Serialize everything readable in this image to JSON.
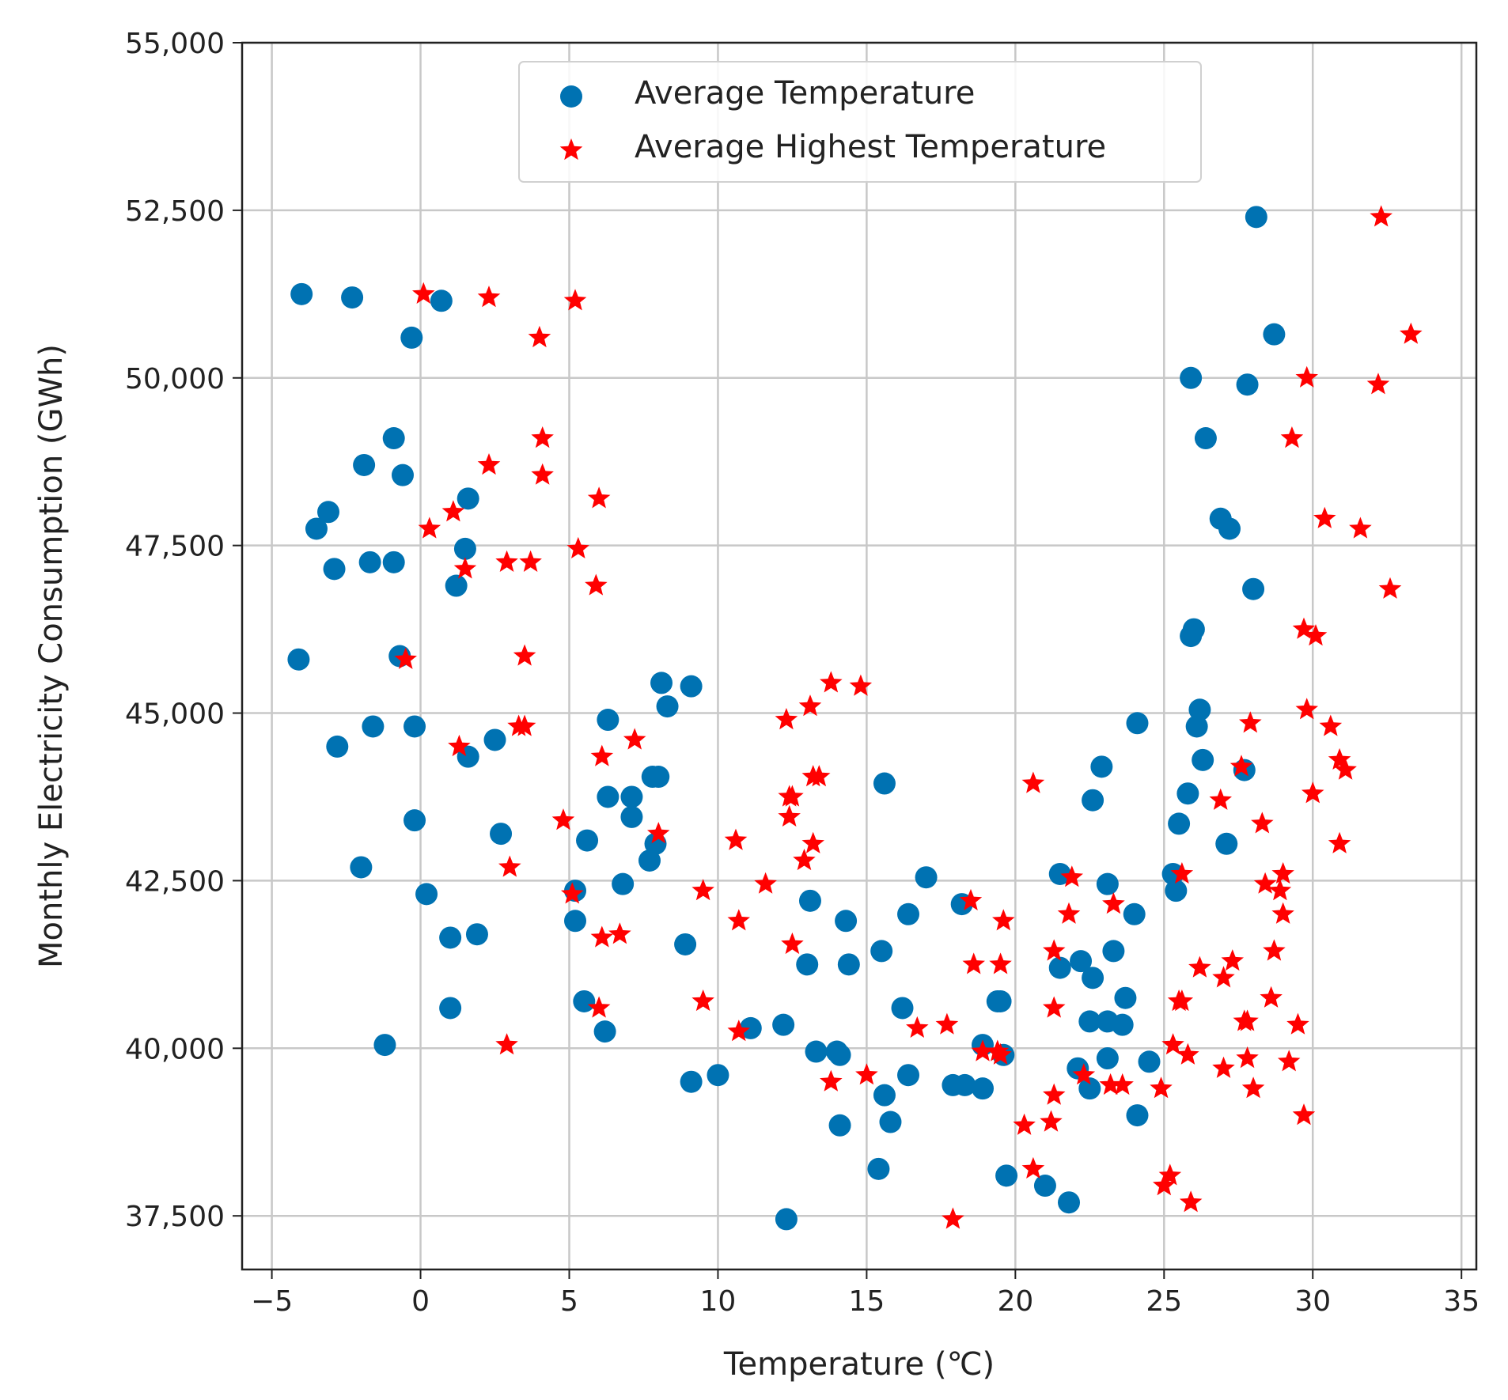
{
  "chart_data": {
    "type": "scatter",
    "title": "",
    "xlabel": "Temperature (℃)",
    "ylabel": "Monthly Electricity Consumption (GWh)",
    "xlim": [
      -6,
      35.5
    ],
    "ylim": [
      36700,
      55000
    ],
    "grid": true,
    "legend_position": "top-center",
    "xticks": [
      -5,
      0,
      5,
      10,
      15,
      20,
      25,
      30,
      35
    ],
    "xtick_labels": [
      "−5",
      "0",
      "5",
      "10",
      "15",
      "20",
      "25",
      "30",
      "35"
    ],
    "yticks": [
      37500,
      40000,
      42500,
      45000,
      47500,
      50000,
      52500,
      55000
    ],
    "ytick_labels": [
      "37,500",
      "40,000",
      "42,500",
      "45,000",
      "47,500",
      "50,000",
      "52,500",
      "55,000"
    ],
    "series": [
      {
        "name": "Average Temperature",
        "marker": "circle",
        "color": "#0072B2",
        "points": [
          [
            -4.0,
            51250
          ],
          [
            -2.3,
            51200
          ],
          [
            0.7,
            51150
          ],
          [
            -0.3,
            50600
          ],
          [
            -0.9,
            49100
          ],
          [
            -1.9,
            48700
          ],
          [
            -0.6,
            48550
          ],
          [
            1.6,
            48200
          ],
          [
            -3.1,
            48000
          ],
          [
            -3.5,
            47750
          ],
          [
            -1.7,
            47250
          ],
          [
            -0.9,
            47250
          ],
          [
            -2.9,
            47150
          ],
          [
            1.5,
            47450
          ],
          [
            1.2,
            46900
          ],
          [
            -4.1,
            45800
          ],
          [
            -0.7,
            45850
          ],
          [
            -1.6,
            44800
          ],
          [
            -0.2,
            44800
          ],
          [
            -2.8,
            44500
          ],
          [
            1.6,
            44350
          ],
          [
            2.5,
            44600
          ],
          [
            -0.2,
            43400
          ],
          [
            2.7,
            43200
          ],
          [
            -2.0,
            42700
          ],
          [
            0.2,
            42300
          ],
          [
            1.0,
            41650
          ],
          [
            1.9,
            41700
          ],
          [
            1.0,
            40600
          ],
          [
            -1.2,
            40050
          ],
          [
            5.2,
            42350
          ],
          [
            5.2,
            41900
          ],
          [
            5.6,
            43100
          ],
          [
            6.3,
            43750
          ],
          [
            6.3,
            44900
          ],
          [
            7.1,
            43750
          ],
          [
            7.1,
            43450
          ],
          [
            6.8,
            42450
          ],
          [
            7.8,
            44050
          ],
          [
            8.0,
            44050
          ],
          [
            8.1,
            45450
          ],
          [
            8.3,
            45100
          ],
          [
            7.9,
            43050
          ],
          [
            7.7,
            42800
          ],
          [
            9.1,
            45400
          ],
          [
            8.9,
            41550
          ],
          [
            5.5,
            40700
          ],
          [
            6.2,
            40250
          ],
          [
            10.0,
            39600
          ],
          [
            9.1,
            39500
          ],
          [
            11.1,
            40300
          ],
          [
            12.2,
            40350
          ],
          [
            12.3,
            37450
          ],
          [
            13.0,
            41250
          ],
          [
            13.1,
            42200
          ],
          [
            13.3,
            39950
          ],
          [
            14.1,
            39900
          ],
          [
            14.0,
            39950
          ],
          [
            14.3,
            41900
          ],
          [
            14.4,
            41250
          ],
          [
            14.1,
            38850
          ],
          [
            15.4,
            38200
          ],
          [
            15.5,
            41450
          ],
          [
            15.6,
            43950
          ],
          [
            15.6,
            39300
          ],
          [
            15.8,
            38900
          ],
          [
            16.2,
            40600
          ],
          [
            16.4,
            42000
          ],
          [
            16.4,
            39600
          ],
          [
            17.0,
            42550
          ],
          [
            18.2,
            42150
          ],
          [
            17.9,
            39450
          ],
          [
            18.3,
            39450
          ],
          [
            18.9,
            40050
          ],
          [
            18.9,
            39400
          ],
          [
            19.4,
            40700
          ],
          [
            19.5,
            40700
          ],
          [
            19.6,
            39900
          ],
          [
            19.7,
            38100
          ],
          [
            21.0,
            37950
          ],
          [
            21.8,
            37700
          ],
          [
            21.5,
            42600
          ],
          [
            21.5,
            41200
          ],
          [
            22.2,
            41300
          ],
          [
            22.6,
            41050
          ],
          [
            22.5,
            40400
          ],
          [
            22.6,
            43700
          ],
          [
            22.9,
            44200
          ],
          [
            23.1,
            42450
          ],
          [
            23.3,
            41450
          ],
          [
            23.1,
            40400
          ],
          [
            23.6,
            40350
          ],
          [
            23.7,
            40750
          ],
          [
            22.1,
            39700
          ],
          [
            22.5,
            39400
          ],
          [
            23.1,
            39850
          ],
          [
            24.0,
            42000
          ],
          [
            24.1,
            44850
          ],
          [
            24.5,
            39800
          ],
          [
            24.1,
            39000
          ],
          [
            25.3,
            42600
          ],
          [
            25.4,
            42350
          ],
          [
            25.5,
            43350
          ],
          [
            25.8,
            43800
          ],
          [
            26.0,
            46250
          ],
          [
            25.9,
            46150
          ],
          [
            26.1,
            44800
          ],
          [
            26.2,
            45050
          ],
          [
            26.3,
            44300
          ],
          [
            25.9,
            50000
          ],
          [
            26.4,
            49100
          ],
          [
            26.9,
            47900
          ],
          [
            27.2,
            47750
          ],
          [
            27.7,
            44150
          ],
          [
            27.1,
            43050
          ],
          [
            28.0,
            46850
          ],
          [
            27.8,
            49900
          ],
          [
            28.7,
            50650
          ],
          [
            28.1,
            52400
          ]
        ]
      },
      {
        "name": "Average Highest Temperature",
        "marker": "star",
        "color": "#FF0000",
        "points": [
          [
            0.1,
            51250
          ],
          [
            2.3,
            51200
          ],
          [
            5.2,
            51150
          ],
          [
            4.0,
            50600
          ],
          [
            4.1,
            49100
          ],
          [
            2.3,
            48700
          ],
          [
            4.1,
            48550
          ],
          [
            6.0,
            48200
          ],
          [
            1.1,
            48000
          ],
          [
            0.3,
            47750
          ],
          [
            2.9,
            47250
          ],
          [
            3.7,
            47250
          ],
          [
            1.5,
            47150
          ],
          [
            5.3,
            47450
          ],
          [
            5.9,
            46900
          ],
          [
            -0.5,
            45800
          ],
          [
            3.5,
            45850
          ],
          [
            3.3,
            44800
          ],
          [
            3.5,
            44800
          ],
          [
            1.3,
            44500
          ],
          [
            6.1,
            44350
          ],
          [
            7.2,
            44600
          ],
          [
            4.8,
            43400
          ],
          [
            8.0,
            43200
          ],
          [
            3.0,
            42700
          ],
          [
            5.1,
            42300
          ],
          [
            6.1,
            41650
          ],
          [
            6.7,
            41700
          ],
          [
            6.0,
            40600
          ],
          [
            2.9,
            40050
          ],
          [
            9.5,
            42350
          ],
          [
            10.7,
            41900
          ],
          [
            10.6,
            43100
          ],
          [
            12.4,
            43750
          ],
          [
            12.3,
            44900
          ],
          [
            12.5,
            43750
          ],
          [
            12.4,
            43450
          ],
          [
            11.6,
            42450
          ],
          [
            13.2,
            44050
          ],
          [
            13.4,
            44050
          ],
          [
            13.8,
            45450
          ],
          [
            13.1,
            45100
          ],
          [
            13.2,
            43050
          ],
          [
            12.9,
            42800
          ],
          [
            14.8,
            45400
          ],
          [
            12.5,
            41550
          ],
          [
            9.5,
            40700
          ],
          [
            10.7,
            40250
          ],
          [
            13.8,
            39500
          ],
          [
            15.0,
            39600
          ],
          [
            16.7,
            40300
          ],
          [
            17.7,
            40350
          ],
          [
            17.9,
            37450
          ],
          [
            18.6,
            41250
          ],
          [
            18.5,
            42200
          ],
          [
            18.9,
            39950
          ],
          [
            19.5,
            39900
          ],
          [
            19.4,
            39950
          ],
          [
            19.6,
            41900
          ],
          [
            19.5,
            41250
          ],
          [
            20.3,
            38850
          ],
          [
            20.6,
            38200
          ],
          [
            21.3,
            41450
          ],
          [
            20.6,
            43950
          ],
          [
            21.3,
            39300
          ],
          [
            21.2,
            38900
          ],
          [
            21.3,
            40600
          ],
          [
            21.8,
            42000
          ],
          [
            22.3,
            39600
          ],
          [
            21.9,
            42550
          ],
          [
            23.3,
            42150
          ],
          [
            23.2,
            39450
          ],
          [
            23.6,
            39450
          ],
          [
            25.3,
            40050
          ],
          [
            24.9,
            39400
          ],
          [
            25.5,
            40700
          ],
          [
            25.6,
            40700
          ],
          [
            25.8,
            39900
          ],
          [
            25.2,
            38100
          ],
          [
            25.0,
            37950
          ],
          [
            25.9,
            37700
          ],
          [
            25.6,
            42600
          ],
          [
            26.2,
            41200
          ],
          [
            27.3,
            41300
          ],
          [
            27.0,
            41050
          ],
          [
            27.7,
            40400
          ],
          [
            26.9,
            43700
          ],
          [
            27.6,
            44200
          ],
          [
            28.4,
            42450
          ],
          [
            28.7,
            41450
          ],
          [
            27.8,
            40400
          ],
          [
            29.5,
            40350
          ],
          [
            28.6,
            40750
          ],
          [
            27.0,
            39700
          ],
          [
            28.0,
            39400
          ],
          [
            27.8,
            39850
          ],
          [
            29.0,
            42000
          ],
          [
            27.9,
            44850
          ],
          [
            29.2,
            39800
          ],
          [
            29.7,
            39000
          ],
          [
            29.0,
            42600
          ],
          [
            28.9,
            42350
          ],
          [
            28.3,
            43350
          ],
          [
            30.0,
            43800
          ],
          [
            29.7,
            46250
          ],
          [
            30.1,
            46150
          ],
          [
            30.6,
            44800
          ],
          [
            29.8,
            45050
          ],
          [
            30.9,
            44300
          ],
          [
            29.8,
            50000
          ],
          [
            29.3,
            49100
          ],
          [
            30.4,
            47900
          ],
          [
            31.6,
            47750
          ],
          [
            31.1,
            44150
          ],
          [
            30.9,
            43050
          ],
          [
            32.6,
            46850
          ],
          [
            32.2,
            49900
          ],
          [
            33.3,
            50650
          ],
          [
            32.3,
            52400
          ]
        ]
      }
    ]
  }
}
